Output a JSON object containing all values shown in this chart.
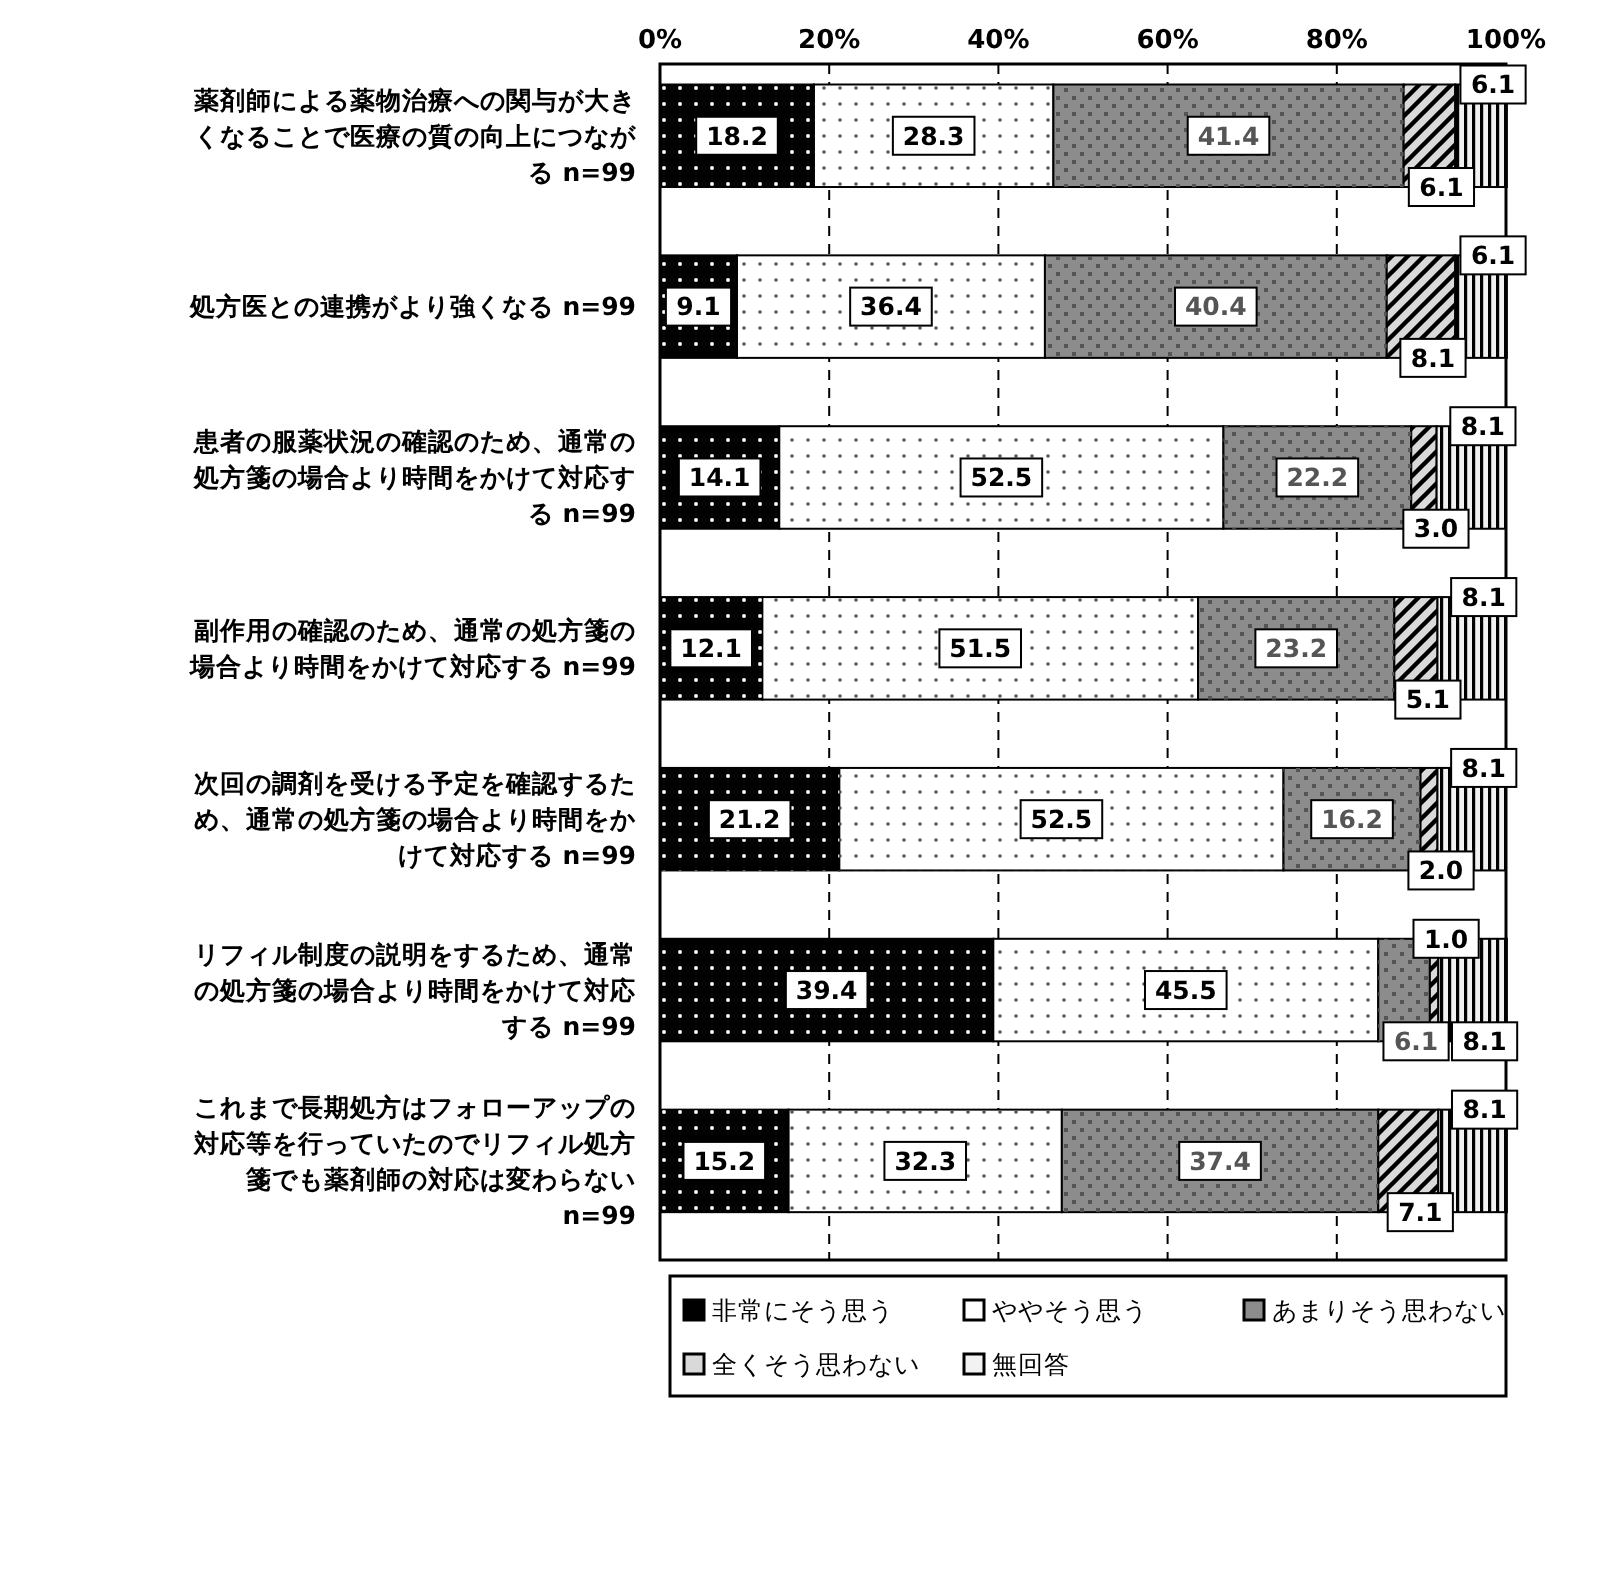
{
  "chart_data": {
    "type": "bar",
    "orientation": "horizontal",
    "stacked": true,
    "grid": "x",
    "legend": "bottom",
    "categories": [
      "薬剤師による薬物治療への関与が大きくなることで医療の質の向上につながる n=99",
      "処方医との連携がより強くなる n=99",
      "患者の服薬状況の確認のため、通常の処方箋の場合より時間をかけて対応する n=99",
      "副作用の確認のため、通常の処方箋の場合より時間をかけて対応する n=99",
      "次回の調剤を受ける予定を確認するため、通常の処方箋の場合より時間をかけて対応する n=99",
      "リフィル制度の説明をするため、通常の処方箋の場合より時間をかけて対応する n=99",
      "これまで長期処方はフォローアップの対応等を行っていたのでリフィル処方箋でも薬剤師の対応は変わらない n=99"
    ],
    "xlim": [
      0,
      100
    ],
    "xticks": [
      {
        "value": 0,
        "label": "0%"
      },
      {
        "value": 20,
        "label": "20%"
      },
      {
        "value": 40,
        "label": "40%"
      },
      {
        "value": 60,
        "label": "60%"
      },
      {
        "value": 80,
        "label": "80%"
      },
      {
        "value": 100,
        "label": "100%"
      }
    ],
    "series": [
      {
        "name": "非常にそう思う",
        "color": "#000000",
        "values": [
          18.2,
          9.1,
          14.1,
          12.1,
          21.2,
          39.4,
          15.2
        ],
        "value_labels": [
          "18.2",
          "9.1",
          "14.1",
          "12.1",
          "21.2",
          "39.4",
          "15.2"
        ]
      },
      {
        "name": "ややそう思う",
        "color": "#ffffff",
        "values": [
          28.3,
          36.4,
          52.5,
          51.5,
          52.5,
          45.5,
          32.3
        ],
        "value_labels": [
          "28.3",
          "36.4",
          "52.5",
          "51.5",
          "52.5",
          "45.5",
          "32.3"
        ]
      },
      {
        "name": "あまりそう思わない",
        "color": "#8c8c8c",
        "values": [
          41.4,
          40.4,
          22.2,
          23.2,
          16.2,
          6.1,
          37.4
        ],
        "value_labels": [
          "41.4",
          "40.4",
          "22.2",
          "23.2",
          "16.2",
          "6.1",
          "37.4"
        ]
      },
      {
        "name": "全くそう思わない",
        "color": "#d9d9d9",
        "values": [
          6.1,
          8.1,
          3.0,
          5.1,
          2.0,
          1.0,
          7.1
        ],
        "value_labels": [
          "6.1",
          "8.1",
          "3.0",
          "5.1",
          "2.0",
          "1.0",
          "7.1"
        ]
      },
      {
        "name": "無回答",
        "color": "#f2f2f2",
        "values": [
          6.1,
          6.1,
          8.1,
          8.1,
          8.1,
          8.1,
          8.1
        ],
        "value_labels": [
          "6.1",
          "6.1",
          "8.1",
          "8.1",
          "8.1",
          "8.1",
          "8.1"
        ]
      }
    ]
  }
}
